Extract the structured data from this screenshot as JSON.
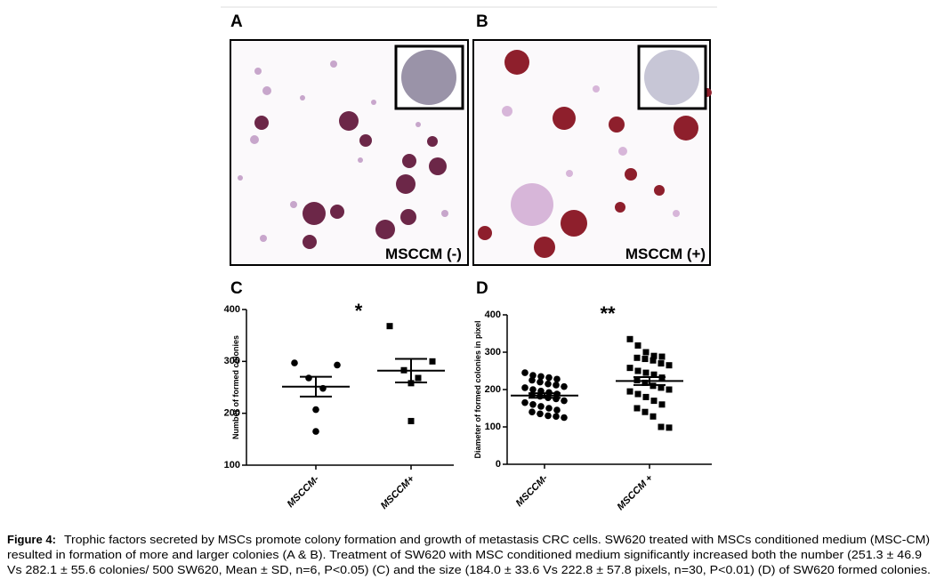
{
  "panels": {
    "a": {
      "label": "A",
      "caption": "MSCCM (-)"
    },
    "b": {
      "label": "B",
      "caption": "MSCCM (+)"
    }
  },
  "chart_data": [
    {
      "type": "strip",
      "panel_label": "C",
      "y_label": "Number of formed colonies",
      "annotation": "*",
      "categories": [
        "MSCCM-",
        "MSCCM+"
      ],
      "values": [
        [
          297,
          293,
          268,
          248,
          207,
          165
        ],
        [
          368,
          300,
          283,
          268,
          258,
          185
        ]
      ],
      "means": [
        251.3,
        282.1
      ],
      "errors": [
        19.1,
        22.7
      ],
      "markers": [
        "circle",
        "square"
      ],
      "color": "#000000",
      "ylim": [
        100,
        400
      ],
      "yticks": [
        100,
        200,
        300,
        400
      ]
    },
    {
      "type": "strip",
      "panel_label": "D",
      "y_label": "Diameter of formed colonies in pixel",
      "annotation": "**",
      "categories": [
        "MSCCM-",
        "MSCCM +"
      ],
      "values": [
        [
          245,
          238,
          235,
          232,
          228,
          225,
          220,
          215,
          212,
          208,
          205,
          200,
          196,
          192,
          188,
          185,
          182,
          178,
          175,
          170,
          165,
          160,
          155,
          150,
          145,
          140,
          135,
          130,
          128,
          125
        ],
        [
          335,
          318,
          300,
          290,
          288,
          285,
          282,
          278,
          270,
          265,
          258,
          250,
          245,
          240,
          232,
          225,
          218,
          210,
          205,
          200,
          195,
          188,
          180,
          170,
          160,
          150,
          140,
          128,
          100,
          98
        ]
      ],
      "means": [
        184.0,
        222.8
      ],
      "errors": [
        6.1,
        10.6
      ],
      "markers": [
        "circle",
        "square"
      ],
      "color": "#000000",
      "ylim": [
        0,
        400
      ],
      "yticks": [
        0,
        100,
        200,
        300,
        400
      ]
    }
  ],
  "caption": {
    "label": "Figure 4:",
    "lines": [
      "Trophic factors secreted by MSCs promote colony formation and growth of metastasis CRC cells. SW620 treated with MSCs conditioned medium (MSC-CM)",
      "resulted in formation of more and larger colonies (A & B). Treatment of SW620 with MSC conditioned medium significantly increased both the number (251.3 ± 46.9",
      "Vs 282.1 ± 55.6 colonies/ 500 SW620, Mean ± SD, n=6, P<0.05) (C) and the size (184.0 ± 33.6 Vs 222.8 ± 57.8 pixels, n=30, P<0.01) (D) of SW620 formed colonies."
    ]
  }
}
